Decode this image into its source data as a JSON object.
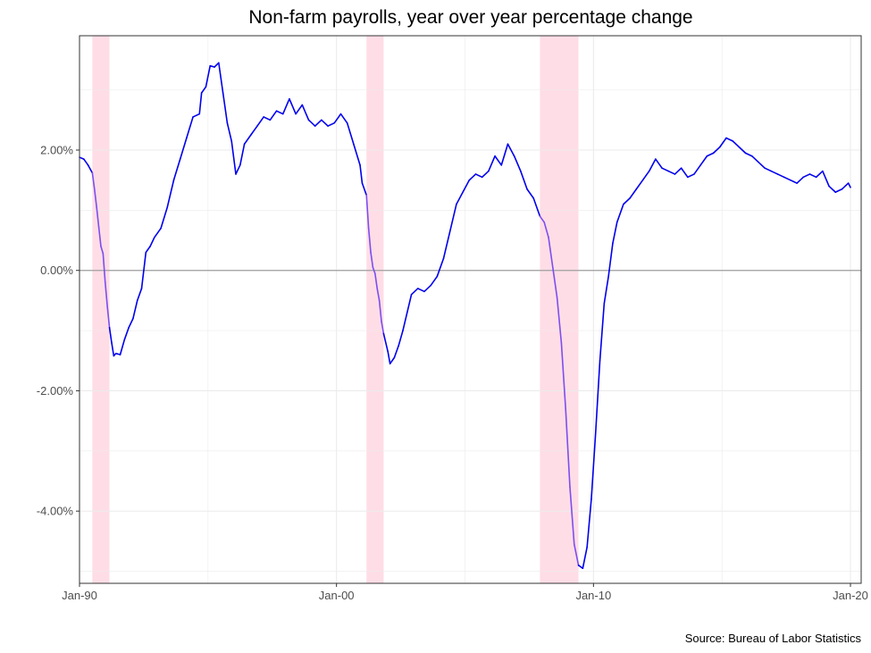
{
  "chart_data": {
    "type": "line",
    "title": "Non-farm payrolls, year over year percentage change",
    "caption": "Source: Bureau of Labor Statistics",
    "xlabel": "",
    "ylabel": "",
    "xlim": [
      "1990-01",
      "2020-06"
    ],
    "ylim": [
      -5.2,
      3.9
    ],
    "x_ticks": [
      {
        "value": "1990-01",
        "label": "Jan-90"
      },
      {
        "value": "2000-01",
        "label": "Jan-00"
      },
      {
        "value": "2010-01",
        "label": "Jan-10"
      },
      {
        "value": "2020-01",
        "label": "Jan-20"
      }
    ],
    "y_ticks": [
      {
        "value": 2.0,
        "label": "2.00%"
      },
      {
        "value": 0.0,
        "label": "0.00%"
      },
      {
        "value": -2.0,
        "label": "-2.00%"
      },
      {
        "value": -4.0,
        "label": "-4.00%"
      }
    ],
    "grid": true,
    "zero_line": true,
    "recessions": [
      {
        "start": "1990-07",
        "end": "1991-03"
      },
      {
        "start": "2001-03",
        "end": "2001-11"
      },
      {
        "start": "2007-12",
        "end": "2009-06"
      }
    ],
    "colors": {
      "expansion_line": "#0000ee",
      "recession_line": "#7b4ff0",
      "recession_band": "#ffdde6",
      "zero_line": "#9e9e9e",
      "grid": "#ebebeb",
      "panel_border": "#333333"
    },
    "series": [
      {
        "points": [
          [
            "1990-01",
            1.88
          ],
          [
            "1990-03",
            1.85
          ],
          [
            "1990-05",
            1.75
          ],
          [
            "1990-07",
            1.62
          ],
          [
            "1990-08",
            1.35
          ],
          [
            "1990-09",
            1.05
          ],
          [
            "1990-10",
            0.72
          ],
          [
            "1990-11",
            0.4
          ],
          [
            "1990-12",
            0.28
          ],
          [
            "1991-01",
            -0.2
          ],
          [
            "1991-02",
            -0.6
          ],
          [
            "1991-03",
            -0.95
          ],
          [
            "1991-04",
            -1.2
          ],
          [
            "1991-05",
            -1.42
          ],
          [
            "1991-06",
            -1.38
          ],
          [
            "1991-08",
            -1.4
          ],
          [
            "1991-10",
            -1.15
          ],
          [
            "1991-12",
            -0.95
          ],
          [
            "1992-02",
            -0.8
          ],
          [
            "1992-04",
            -0.5
          ],
          [
            "1992-06",
            -0.3
          ],
          [
            "1992-08",
            0.3
          ],
          [
            "1992-10",
            0.4
          ],
          [
            "1992-12",
            0.55
          ],
          [
            "1993-03",
            0.7
          ],
          [
            "1993-06",
            1.05
          ],
          [
            "1993-09",
            1.5
          ],
          [
            "1993-12",
            1.85
          ],
          [
            "1994-03",
            2.2
          ],
          [
            "1994-06",
            2.55
          ],
          [
            "1994-09",
            2.6
          ],
          [
            "1994-10",
            2.95
          ],
          [
            "1994-12",
            3.05
          ],
          [
            "1995-02",
            3.4
          ],
          [
            "1995-04",
            3.38
          ],
          [
            "1995-06",
            3.45
          ],
          [
            "1995-08",
            2.95
          ],
          [
            "1995-10",
            2.45
          ],
          [
            "1995-12",
            2.15
          ],
          [
            "1996-02",
            1.6
          ],
          [
            "1996-04",
            1.75
          ],
          [
            "1996-06",
            2.1
          ],
          [
            "1996-09",
            2.25
          ],
          [
            "1996-12",
            2.4
          ],
          [
            "1997-03",
            2.55
          ],
          [
            "1997-06",
            2.5
          ],
          [
            "1997-09",
            2.65
          ],
          [
            "1997-12",
            2.6
          ],
          [
            "1998-03",
            2.85
          ],
          [
            "1998-06",
            2.6
          ],
          [
            "1998-09",
            2.75
          ],
          [
            "1998-12",
            2.5
          ],
          [
            "1999-03",
            2.4
          ],
          [
            "1999-06",
            2.5
          ],
          [
            "1999-09",
            2.4
          ],
          [
            "1999-12",
            2.45
          ],
          [
            "2000-03",
            2.6
          ],
          [
            "2000-06",
            2.45
          ],
          [
            "2000-09",
            2.1
          ],
          [
            "2000-12",
            1.75
          ],
          [
            "2001-01",
            1.45
          ],
          [
            "2001-03",
            1.25
          ],
          [
            "2001-04",
            0.7
          ],
          [
            "2001-05",
            0.3
          ],
          [
            "2001-06",
            0.05
          ],
          [
            "2001-07",
            -0.05
          ],
          [
            "2001-08",
            -0.3
          ],
          [
            "2001-09",
            -0.5
          ],
          [
            "2001-10",
            -0.85
          ],
          [
            "2001-11",
            -1.05
          ],
          [
            "2002-01",
            -1.35
          ],
          [
            "2002-02",
            -1.55
          ],
          [
            "2002-04",
            -1.45
          ],
          [
            "2002-06",
            -1.25
          ],
          [
            "2002-08",
            -1.0
          ],
          [
            "2002-10",
            -0.7
          ],
          [
            "2002-12",
            -0.4
          ],
          [
            "2003-03",
            -0.3
          ],
          [
            "2003-06",
            -0.35
          ],
          [
            "2003-09",
            -0.25
          ],
          [
            "2003-12",
            -0.1
          ],
          [
            "2004-03",
            0.2
          ],
          [
            "2004-06",
            0.65
          ],
          [
            "2004-09",
            1.1
          ],
          [
            "2004-12",
            1.3
          ],
          [
            "2005-03",
            1.5
          ],
          [
            "2005-06",
            1.6
          ],
          [
            "2005-09",
            1.55
          ],
          [
            "2005-12",
            1.65
          ],
          [
            "2006-03",
            1.9
          ],
          [
            "2006-06",
            1.75
          ],
          [
            "2006-09",
            2.1
          ],
          [
            "2006-12",
            1.9
          ],
          [
            "2007-03",
            1.65
          ],
          [
            "2007-06",
            1.35
          ],
          [
            "2007-09",
            1.2
          ],
          [
            "2007-12",
            0.9
          ],
          [
            "2008-02",
            0.8
          ],
          [
            "2008-04",
            0.55
          ],
          [
            "2008-06",
            0.05
          ],
          [
            "2008-08",
            -0.45
          ],
          [
            "2008-10",
            -1.2
          ],
          [
            "2008-12",
            -2.3
          ],
          [
            "2009-02",
            -3.6
          ],
          [
            "2009-04",
            -4.55
          ],
          [
            "2009-06",
            -4.9
          ],
          [
            "2009-08",
            -4.95
          ],
          [
            "2009-10",
            -4.6
          ],
          [
            "2009-12",
            -3.8
          ],
          [
            "2010-02",
            -2.7
          ],
          [
            "2010-04",
            -1.5
          ],
          [
            "2010-06",
            -0.55
          ],
          [
            "2010-08",
            -0.1
          ],
          [
            "2010-10",
            0.45
          ],
          [
            "2010-12",
            0.8
          ],
          [
            "2011-03",
            1.1
          ],
          [
            "2011-06",
            1.2
          ],
          [
            "2011-09",
            1.35
          ],
          [
            "2011-12",
            1.5
          ],
          [
            "2012-03",
            1.65
          ],
          [
            "2012-06",
            1.85
          ],
          [
            "2012-09",
            1.7
          ],
          [
            "2012-12",
            1.65
          ],
          [
            "2013-03",
            1.6
          ],
          [
            "2013-06",
            1.7
          ],
          [
            "2013-09",
            1.55
          ],
          [
            "2013-12",
            1.6
          ],
          [
            "2014-03",
            1.75
          ],
          [
            "2014-06",
            1.9
          ],
          [
            "2014-09",
            1.95
          ],
          [
            "2014-12",
            2.05
          ],
          [
            "2015-03",
            2.2
          ],
          [
            "2015-06",
            2.15
          ],
          [
            "2015-09",
            2.05
          ],
          [
            "2015-12",
            1.95
          ],
          [
            "2016-03",
            1.9
          ],
          [
            "2016-06",
            1.8
          ],
          [
            "2016-09",
            1.7
          ],
          [
            "2016-12",
            1.65
          ],
          [
            "2017-03",
            1.6
          ],
          [
            "2017-06",
            1.55
          ],
          [
            "2017-09",
            1.5
          ],
          [
            "2017-12",
            1.45
          ],
          [
            "2018-03",
            1.55
          ],
          [
            "2018-06",
            1.6
          ],
          [
            "2018-09",
            1.55
          ],
          [
            "2018-12",
            1.65
          ],
          [
            "2019-03",
            1.4
          ],
          [
            "2019-06",
            1.3
          ],
          [
            "2019-09",
            1.35
          ],
          [
            "2019-12",
            1.45
          ],
          [
            "2020-01",
            1.38
          ]
        ]
      }
    ]
  }
}
